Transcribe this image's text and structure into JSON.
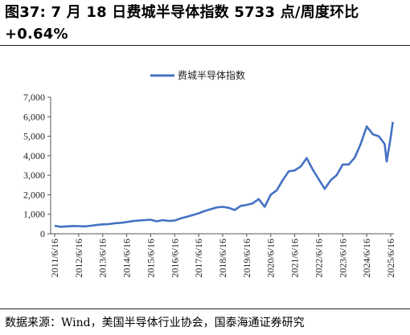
{
  "header": {
    "title": "图37:  7  月  18  日费城半导体指数  5733  点/周度环比+0.64%"
  },
  "footer": {
    "source": "数据来源：Wind，美国半导体行业协会，国泰海通证券研究"
  },
  "chart_data": {
    "type": "line",
    "title": "",
    "xlabel": "",
    "ylabel": "",
    "ylim": [
      0,
      7000
    ],
    "yticks": [
      "0",
      "1,000",
      "2,000",
      "3,000",
      "4,000",
      "5,000",
      "6,000",
      "7,000"
    ],
    "xticks": [
      "2011/6/16",
      "2012/6/16",
      "2013/6/16",
      "2014/6/16",
      "2015/6/16",
      "2016/6/16",
      "2017/6/16",
      "2018/6/16",
      "2019/6/16",
      "2020/6/16",
      "2021/6/16",
      "2022/6/16",
      "2023/6/16",
      "2024/6/16",
      "2025/6/16"
    ],
    "legend": {
      "position": "top-center"
    },
    "grid": false,
    "series": [
      {
        "name": "费城半导体指数",
        "color": "#4472C4",
        "x": [
          "2011/6/16",
          "2011/9/16",
          "2011/12/16",
          "2012/3/16",
          "2012/6/16",
          "2012/9/16",
          "2012/12/16",
          "2013/3/16",
          "2013/6/16",
          "2013/9/16",
          "2013/12/16",
          "2014/3/16",
          "2014/6/16",
          "2014/9/16",
          "2014/12/16",
          "2015/3/16",
          "2015/6/16",
          "2015/9/16",
          "2015/12/16",
          "2016/3/16",
          "2016/6/16",
          "2016/9/16",
          "2016/12/16",
          "2017/3/16",
          "2017/6/16",
          "2017/9/16",
          "2017/12/16",
          "2018/3/16",
          "2018/6/16",
          "2018/9/16",
          "2018/12/16",
          "2019/3/16",
          "2019/6/16",
          "2019/9/16",
          "2019/12/16",
          "2020/3/16",
          "2020/6/16",
          "2020/9/16",
          "2020/12/16",
          "2021/3/16",
          "2021/6/16",
          "2021/9/16",
          "2021/12/16",
          "2022/3/16",
          "2022/6/16",
          "2022/9/16",
          "2022/12/16",
          "2023/3/16",
          "2023/6/16",
          "2023/9/16",
          "2023/12/16",
          "2024/3/16",
          "2024/6/16",
          "2024/9/16",
          "2024/12/16",
          "2025/3/16",
          "2025/4/16",
          "2025/6/16",
          "2025/7/18"
        ],
        "y": [
          410,
          360,
          380,
          400,
          390,
          380,
          410,
          450,
          480,
          500,
          540,
          560,
          600,
          650,
          680,
          700,
          720,
          640,
          700,
          660,
          680,
          790,
          870,
          960,
          1050,
          1170,
          1260,
          1350,
          1380,
          1330,
          1220,
          1430,
          1480,
          1560,
          1780,
          1380,
          2000,
          2230,
          2750,
          3200,
          3250,
          3450,
          3880,
          3300,
          2800,
          2300,
          2750,
          3000,
          3550,
          3550,
          3900,
          4600,
          5500,
          5100,
          5000,
          4600,
          3700,
          4950,
          5733
        ]
      }
    ]
  }
}
